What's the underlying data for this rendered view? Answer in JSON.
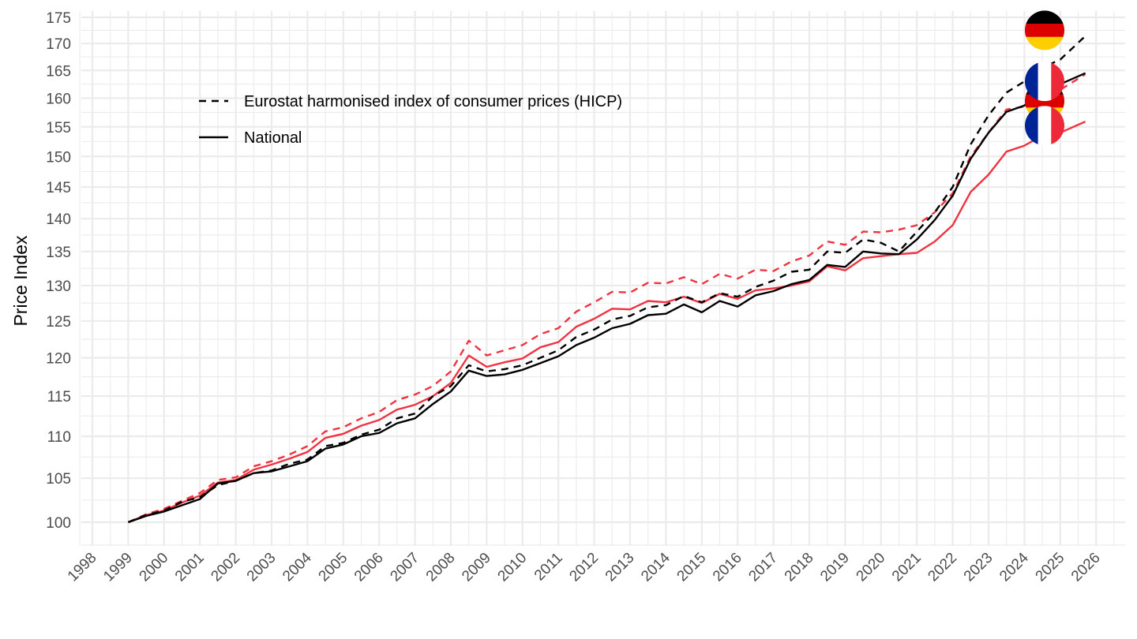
{
  "chart_data": {
    "type": "line",
    "title": "",
    "xlabel": "",
    "ylabel": "Price Index",
    "y_scale": "log",
    "ylim": [
      98,
      176
    ],
    "xlim": [
      1997.7,
      2026.8
    ],
    "grid": true,
    "y_ticks": [
      100,
      105,
      110,
      115,
      120,
      125,
      130,
      135,
      140,
      145,
      150,
      155,
      160,
      165,
      170,
      175
    ],
    "x_ticks": [
      1998,
      1999,
      2000,
      2001,
      2002,
      2003,
      2004,
      2005,
      2006,
      2007,
      2008,
      2009,
      2010,
      2011,
      2012,
      2013,
      2014,
      2015,
      2016,
      2017,
      2018,
      2019,
      2020,
      2021,
      2022,
      2023,
      2024,
      2025,
      2026
    ],
    "legend": {
      "position": "top-left",
      "entries": [
        {
          "label": "Eurostat harmonised index of consumer prices (HICP)",
          "linetype": "dashed"
        },
        {
          "label": "National",
          "linetype": "solid"
        }
      ]
    },
    "x": [
      1999.0,
      1999.5,
      2000.0,
      2000.5,
      2001.0,
      2001.5,
      2002.0,
      2002.5,
      2003.0,
      2003.5,
      2004.0,
      2004.5,
      2005.0,
      2005.5,
      2006.0,
      2006.5,
      2007.0,
      2007.5,
      2008.0,
      2008.5,
      2009.0,
      2009.5,
      2010.0,
      2010.5,
      2011.0,
      2011.5,
      2012.0,
      2012.5,
      2013.0,
      2013.5,
      2014.0,
      2014.5,
      2015.0,
      2015.5,
      2016.0,
      2016.5,
      2017.0,
      2017.5,
      2018.0,
      2018.5,
      2019.0,
      2019.5,
      2020.0,
      2020.5,
      2021.0,
      2021.5,
      2022.0,
      2022.5,
      2023.0,
      2023.5,
      2024.0,
      2024.5,
      2025.0,
      2025.7
    ],
    "series": [
      {
        "name": "Germany – HICP",
        "country": "Germany",
        "linetype": "dashed",
        "color": "#000000",
        "values": [
          100.0,
          100.8,
          101.3,
          102.3,
          102.8,
          104.2,
          104.7,
          105.6,
          105.9,
          106.7,
          107.2,
          108.8,
          109.2,
          110.2,
          110.8,
          112.2,
          112.8,
          115.0,
          116.3,
          119.0,
          118.2,
          118.5,
          119.0,
          120.0,
          121.0,
          122.8,
          123.8,
          125.2,
          125.7,
          126.9,
          127.2,
          128.5,
          127.6,
          128.9,
          128.4,
          129.8,
          130.7,
          132.0,
          132.3,
          135.0,
          134.8,
          136.8,
          136.3,
          135.0,
          138.0,
          141.0,
          145.0,
          152.0,
          157.0,
          161.0,
          163.0,
          165.5,
          167.0,
          171.4
        ]
      },
      {
        "name": "Germany – National",
        "country": "Germany",
        "linetype": "solid",
        "color": "#000000",
        "values": [
          100.0,
          100.7,
          101.2,
          101.9,
          102.6,
          104.4,
          104.7,
          105.6,
          105.8,
          106.4,
          107.0,
          108.5,
          109.0,
          110.0,
          110.4,
          111.6,
          112.2,
          114.0,
          115.6,
          118.3,
          117.6,
          117.8,
          118.4,
          119.3,
          120.2,
          121.7,
          122.7,
          124.0,
          124.6,
          125.8,
          126.0,
          127.3,
          126.2,
          127.8,
          127.0,
          128.6,
          129.2,
          130.2,
          130.8,
          133.0,
          132.7,
          135.0,
          134.7,
          134.6,
          136.8,
          139.8,
          143.6,
          149.6,
          154.0,
          157.6,
          158.7,
          161.5,
          162.5,
          164.5
        ]
      },
      {
        "name": "France – HICP",
        "country": "France",
        "linetype": "dashed",
        "color": "#ef3340",
        "values": [
          100.0,
          100.9,
          101.5,
          102.4,
          103.3,
          104.8,
          105.1,
          106.4,
          107.0,
          107.8,
          108.8,
          110.6,
          111.1,
          112.2,
          113.0,
          114.5,
          115.2,
          116.3,
          118.2,
          122.3,
          120.3,
          121.0,
          121.7,
          123.2,
          124.0,
          126.3,
          127.6,
          129.1,
          129.0,
          130.4,
          130.3,
          131.2,
          130.2,
          131.7,
          131.0,
          132.3,
          132.1,
          133.5,
          134.4,
          136.5,
          136.0,
          138.0,
          137.9,
          138.3,
          139.0,
          141.0,
          144.0,
          150.0,
          154.0,
          158.0,
          158.5,
          161.0,
          161.5,
          164.3
        ]
      },
      {
        "name": "France – National",
        "country": "France",
        "linetype": "solid",
        "color": "#ef3340",
        "values": [
          100.0,
          100.8,
          101.3,
          102.2,
          103.0,
          104.5,
          104.8,
          106.0,
          106.6,
          107.3,
          108.1,
          109.8,
          110.3,
          111.3,
          112.0,
          113.3,
          113.9,
          115.0,
          116.7,
          120.3,
          118.8,
          119.4,
          119.9,
          121.4,
          122.1,
          124.2,
          125.3,
          126.7,
          126.6,
          127.8,
          127.6,
          128.4,
          127.5,
          128.8,
          128.1,
          129.3,
          129.6,
          130.0,
          130.6,
          132.8,
          132.2,
          134.0,
          134.3,
          134.6,
          134.8,
          136.5,
          139.0,
          144.2,
          147.0,
          150.8,
          151.8,
          153.5,
          154.0,
          155.9
        ]
      }
    ],
    "end_markers": [
      {
        "country": "Germany",
        "series": "Germany – HICP",
        "flag": "germany-flag"
      },
      {
        "country": "France",
        "series": "France – HICP",
        "flag": "france-flag"
      },
      {
        "country": "Germany",
        "series": "Germany – National",
        "flag": "germany-flag"
      },
      {
        "country": "France",
        "series": "France – National",
        "flag": "france-flag"
      }
    ]
  },
  "colors": {
    "germany_black": "#000000",
    "germany_red": "#dd0000",
    "germany_gold": "#ffce00",
    "france_blue": "#002395",
    "france_white": "#ffffff",
    "france_red": "#ed2939"
  }
}
